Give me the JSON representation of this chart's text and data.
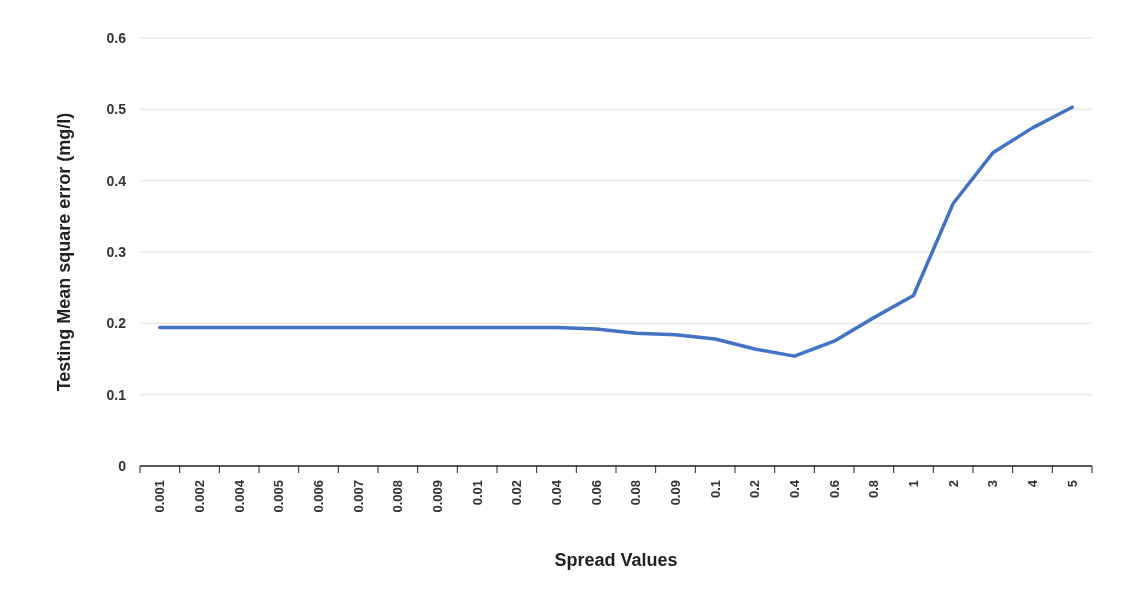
{
  "chart_data": {
    "type": "line",
    "xlabel": "Spread Values",
    "ylabel": "Testing Mean square error (mg/l)",
    "categories": [
      "0.001",
      "0.002",
      "0.004",
      "0.005",
      "0.006",
      "0.007",
      "0.008",
      "0.009",
      "0.01",
      "0.02",
      "0.04",
      "0.06",
      "0.08",
      "0.09",
      "0.1",
      "0.2",
      "0.4",
      "0.6",
      "0.8",
      "1",
      "2",
      "3",
      "4",
      "5"
    ],
    "series": [
      {
        "color": "#4472c4",
        "values": [
          0.194,
          0.194,
          0.194,
          0.194,
          0.194,
          0.194,
          0.194,
          0.194,
          0.194,
          0.194,
          0.194,
          0.192,
          0.186,
          0.184,
          0.178,
          0.164,
          0.154,
          0.175,
          0.208,
          0.239,
          0.368,
          0.439,
          0.474,
          0.503
        ]
      }
    ],
    "ylim": [
      0,
      0.6
    ],
    "yticks": [
      0,
      0.1,
      0.2,
      0.3,
      0.4,
      0.5,
      0.6
    ],
    "grid": "y",
    "marker": "none",
    "line_style": "solid"
  }
}
